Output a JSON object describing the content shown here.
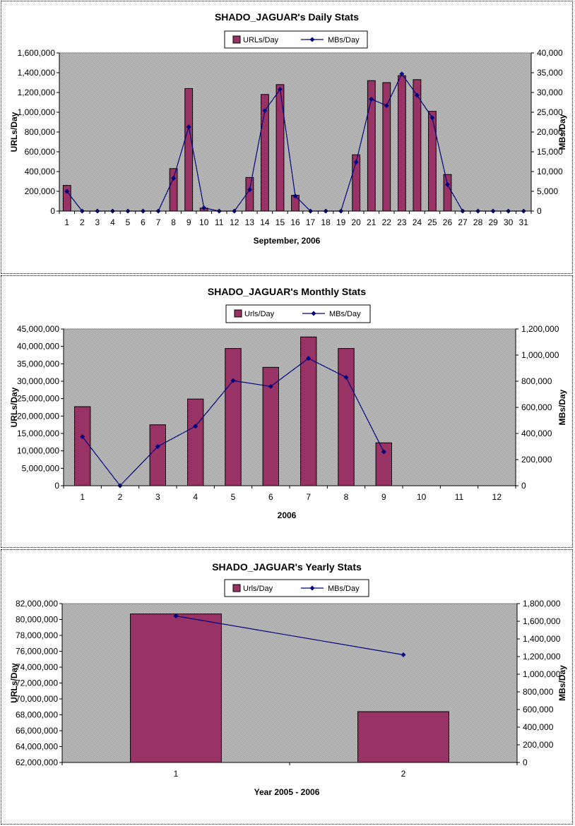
{
  "colors": {
    "bar": "#993366",
    "line": "#000080",
    "plot_bg": "#c0c0c0"
  },
  "chart_data": [
    {
      "type": "bar",
      "title": "SHADO_JAGUAR's Daily Stats",
      "xlabel": "September, 2006",
      "ylabel": "URLs/Day",
      "y2label": "MBs/Day",
      "legend": {
        "placement": "top",
        "bar_label": "URLs/Day",
        "line_label": "MBs/Day"
      },
      "grid": false,
      "categories": [
        "1",
        "2",
        "3",
        "4",
        "5",
        "6",
        "7",
        "8",
        "9",
        "10",
        "11",
        "12",
        "13",
        "14",
        "15",
        "16",
        "17",
        "18",
        "19",
        "20",
        "21",
        "22",
        "23",
        "24",
        "25",
        "26",
        "27",
        "28",
        "29",
        "30",
        "31"
      ],
      "ylim": [
        0,
        1600000
      ],
      "yticks": [
        0,
        200000,
        400000,
        600000,
        800000,
        1000000,
        1200000,
        1400000,
        1600000
      ],
      "y2lim": [
        0,
        40000
      ],
      "y2ticks": [
        0,
        5000,
        10000,
        15000,
        20000,
        25000,
        30000,
        35000,
        40000
      ],
      "series": [
        {
          "name": "URLs/Day",
          "type": "bar",
          "values": [
            260000,
            0,
            0,
            0,
            0,
            0,
            0,
            430000,
            1240000,
            30000,
            0,
            0,
            340000,
            1180000,
            1280000,
            160000,
            0,
            0,
            0,
            570000,
            1320000,
            1300000,
            1370000,
            1330000,
            1010000,
            370000,
            0,
            0,
            0,
            0,
            0
          ]
        },
        {
          "name": "MBs/Day",
          "type": "line",
          "axis": "y2",
          "values": [
            5000,
            0,
            0,
            0,
            0,
            0,
            0,
            8300,
            21300,
            800,
            0,
            0,
            5400,
            25400,
            30800,
            3800,
            0,
            0,
            0,
            12400,
            28300,
            26700,
            34700,
            29300,
            23600,
            6700,
            0,
            0,
            0,
            0,
            0
          ]
        }
      ]
    },
    {
      "type": "bar",
      "title": "SHADO_JAGUAR's Monthly Stats",
      "xlabel": "2006",
      "ylabel": "URLs/Day",
      "y2label": "MBs/Day",
      "legend": {
        "placement": "top",
        "bar_label": "Urls/Day",
        "line_label": "MBs/Day"
      },
      "grid": false,
      "categories": [
        "1",
        "2",
        "3",
        "4",
        "5",
        "6",
        "7",
        "8",
        "9",
        "10",
        "11",
        "12"
      ],
      "ylim": [
        0,
        45000000
      ],
      "yticks": [
        0,
        5000000,
        10000000,
        15000000,
        20000000,
        25000000,
        30000000,
        35000000,
        40000000,
        45000000
      ],
      "y2lim": [
        0,
        1200000
      ],
      "y2ticks": [
        0,
        200000,
        400000,
        600000,
        800000,
        1000000,
        1200000
      ],
      "series": [
        {
          "name": "Urls/Day",
          "type": "bar",
          "values": [
            22700000,
            0,
            17500000,
            24900000,
            39400000,
            34000000,
            42700000,
            39400000,
            12300000,
            null,
            null,
            null
          ]
        },
        {
          "name": "MBs/Day",
          "type": "line",
          "axis": "y2",
          "values": [
            375000,
            0,
            300000,
            455000,
            805000,
            760000,
            975000,
            830000,
            260000,
            null,
            null,
            null
          ]
        }
      ]
    },
    {
      "type": "bar",
      "title": "SHADO_JAGUAR's Yearly Stats",
      "xlabel": "Year 2005 - 2006",
      "ylabel": "URLs/Day",
      "y2label": "MBs/Day",
      "legend": {
        "placement": "top",
        "bar_label": "Urls/Day",
        "line_label": "MBs/Day"
      },
      "grid": false,
      "categories": [
        "1",
        "2"
      ],
      "ylim": [
        62000000,
        82000000
      ],
      "yticks": [
        62000000,
        64000000,
        66000000,
        68000000,
        70000000,
        72000000,
        74000000,
        76000000,
        78000000,
        80000000,
        82000000
      ],
      "y2lim": [
        0,
        1800000
      ],
      "y2ticks": [
        0,
        200000,
        400000,
        600000,
        800000,
        1000000,
        1200000,
        1400000,
        1600000,
        1800000
      ],
      "series": [
        {
          "name": "Urls/Day",
          "type": "bar",
          "values": [
            80700000,
            68400000
          ]
        },
        {
          "name": "MBs/Day",
          "type": "line",
          "axis": "y2",
          "values": [
            1660000,
            1220000
          ]
        }
      ]
    }
  ]
}
